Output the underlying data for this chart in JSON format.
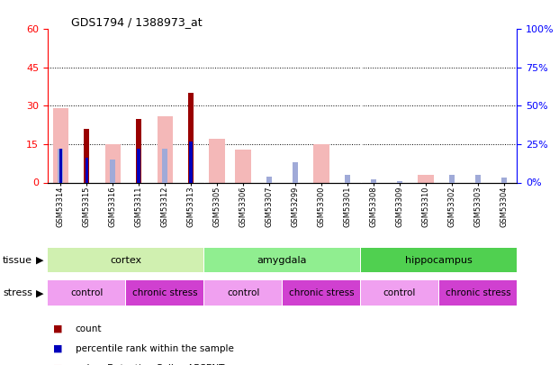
{
  "title": "GDS1794 / 1388973_at",
  "samples": [
    "GSM53314",
    "GSM53315",
    "GSM53316",
    "GSM53311",
    "GSM53312",
    "GSM53313",
    "GSM53305",
    "GSM53306",
    "GSM53307",
    "GSM53299",
    "GSM53300",
    "GSM53301",
    "GSM53308",
    "GSM53309",
    "GSM53310",
    "GSM53302",
    "GSM53303",
    "GSM53304"
  ],
  "count_values": [
    0,
    21,
    0,
    25,
    0,
    35,
    0,
    0,
    0,
    0,
    0,
    0,
    0,
    0,
    0,
    0,
    0,
    0
  ],
  "rank_values": [
    22,
    16,
    0,
    22,
    0,
    27,
    0,
    0,
    0,
    0,
    0,
    0,
    0,
    0,
    0,
    0,
    0,
    0
  ],
  "pink_values": [
    29,
    0,
    15,
    0,
    26,
    0,
    17,
    13,
    0,
    0,
    15,
    0,
    0,
    0,
    3,
    0,
    0,
    0
  ],
  "lightblue_values": [
    22,
    0,
    15,
    0,
    22,
    0,
    0,
    0,
    4,
    13,
    0,
    5,
    2,
    1,
    0,
    5,
    5,
    3
  ],
  "tissue_groups": [
    {
      "label": "cortex",
      "start": 0,
      "end": 6,
      "color": "#d0f0b0"
    },
    {
      "label": "amygdala",
      "start": 6,
      "end": 12,
      "color": "#90ee90"
    },
    {
      "label": "hippocampus",
      "start": 12,
      "end": 18,
      "color": "#50d050"
    }
  ],
  "stress_groups": [
    {
      "label": "control",
      "start": 0,
      "end": 3,
      "color": "#f0a0f0"
    },
    {
      "label": "chronic stress",
      "start": 3,
      "end": 6,
      "color": "#d040d0"
    },
    {
      "label": "control",
      "start": 6,
      "end": 9,
      "color": "#f0a0f0"
    },
    {
      "label": "chronic stress",
      "start": 9,
      "end": 12,
      "color": "#d040d0"
    },
    {
      "label": "control",
      "start": 12,
      "end": 15,
      "color": "#f0a0f0"
    },
    {
      "label": "chronic stress",
      "start": 15,
      "end": 18,
      "color": "#d040d0"
    }
  ],
  "ylim_left": [
    0,
    60
  ],
  "ylim_right": [
    0,
    100
  ],
  "yticks_left": [
    0,
    15,
    30,
    45,
    60
  ],
  "yticks_right": [
    0,
    25,
    50,
    75,
    100
  ],
  "count_color": "#990000",
  "rank_color": "#0000bb",
  "pink_color": "#f4b8b8",
  "lightblue_color": "#a0aad8",
  "bar_width": 0.6,
  "bg_color": "#f0f0f0",
  "plot_bg": "#ffffff"
}
